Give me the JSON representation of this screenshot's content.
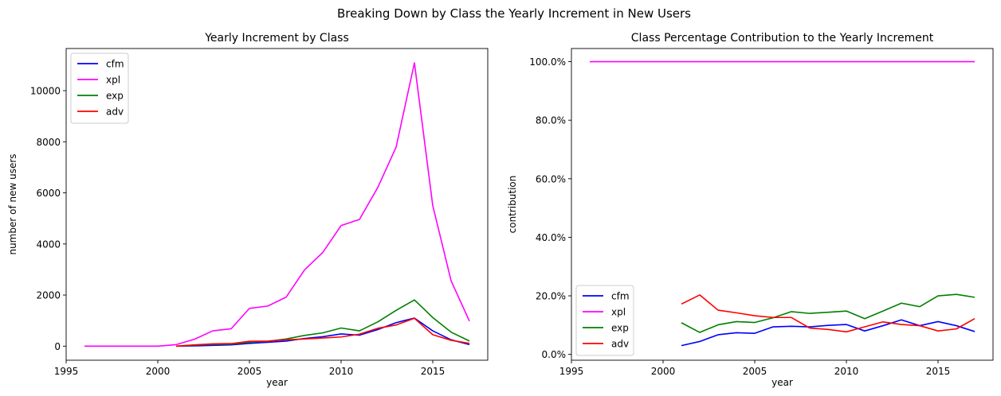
{
  "suptitle": "Breaking Down by Class the Yearly Increment in New Users",
  "chart_data": [
    {
      "type": "line",
      "title": "Yearly Increment by Class",
      "xlabel": "year",
      "ylabel": "number of new users",
      "xlim": [
        1995,
        2018
      ],
      "ylim": [
        -550,
        11650
      ],
      "xticks": [
        1995,
        2000,
        2005,
        2010,
        2015
      ],
      "yticks": [
        0,
        2000,
        4000,
        6000,
        8000,
        10000
      ],
      "ytick_format": "int",
      "legend": "upper left",
      "grid": false,
      "series": [
        {
          "name": "cfm",
          "color": "#0000ff",
          "x": [
            2001,
            2002,
            2003,
            2004,
            2005,
            2006,
            2007,
            2008,
            2009,
            2010,
            2011,
            2012,
            2013,
            2014,
            2015,
            2016,
            2017
          ],
          "y": [
            0,
            10,
            30,
            50,
            110,
            150,
            200,
            300,
            370,
            480,
            430,
            650,
            920,
            1100,
            600,
            250,
            60
          ]
        },
        {
          "name": "xpl",
          "color": "#ff00ff",
          "x": [
            1996,
            1997,
            1998,
            1999,
            2000,
            2001,
            2002,
            2003,
            2004,
            2005,
            2006,
            2007,
            2008,
            2009,
            2010,
            2011,
            2012,
            2013,
            2014,
            2015,
            2016,
            2017
          ],
          "y": [
            0,
            0,
            0,
            0,
            0,
            60,
            270,
            600,
            680,
            1480,
            1570,
            1920,
            2980,
            3670,
            4720,
            4960,
            6210,
            7790,
            11090,
            5500,
            2560,
            980
          ]
        },
        {
          "name": "exp",
          "color": "#008000",
          "x": [
            2001,
            2002,
            2003,
            2004,
            2005,
            2006,
            2007,
            2008,
            2009,
            2010,
            2011,
            2012,
            2013,
            2014,
            2015,
            2016,
            2017
          ],
          "y": [
            0,
            40,
            70,
            80,
            160,
            190,
            280,
            420,
            520,
            710,
            600,
            950,
            1400,
            1810,
            1120,
            550,
            200
          ]
        },
        {
          "name": "adv",
          "color": "#ff0000",
          "x": [
            2001,
            2002,
            2003,
            2004,
            2005,
            2006,
            2007,
            2008,
            2009,
            2010,
            2011,
            2012,
            2013,
            2014,
            2015,
            2016,
            2017
          ],
          "y": [
            0,
            50,
            90,
            100,
            190,
            200,
            250,
            280,
            320,
            360,
            470,
            700,
            830,
            1090,
            450,
            230,
            110
          ]
        }
      ]
    },
    {
      "type": "line",
      "title": "Class Percentage Contribution to the Yearly Increment",
      "xlabel": "year",
      "ylabel": "contribution",
      "xlim": [
        1995,
        2018
      ],
      "ylim": [
        -0.02,
        1.045
      ],
      "xticks": [
        1995,
        2000,
        2005,
        2010,
        2015
      ],
      "yticks": [
        0,
        0.2,
        0.4,
        0.6,
        0.8,
        1.0
      ],
      "ytick_format": "percent",
      "legend": "lower left",
      "grid": false,
      "series": [
        {
          "name": "cfm",
          "color": "#0000ff",
          "x": [
            2001,
            2002,
            2003,
            2004,
            2005,
            2006,
            2007,
            2008,
            2009,
            2010,
            2011,
            2012,
            2013,
            2014,
            2015,
            2016,
            2017
          ],
          "y": [
            0.03,
            0.044,
            0.067,
            0.074,
            0.072,
            0.094,
            0.096,
            0.094,
            0.099,
            0.102,
            0.08,
            0.098,
            0.118,
            0.098,
            0.112,
            0.098,
            0.078
          ]
        },
        {
          "name": "xpl",
          "color": "#ff00ff",
          "x": [
            1996,
            2017
          ],
          "y": [
            1.0,
            1.0
          ]
        },
        {
          "name": "exp",
          "color": "#008000",
          "x": [
            2001,
            2002,
            2003,
            2004,
            2005,
            2006,
            2007,
            2008,
            2009,
            2010,
            2011,
            2012,
            2013,
            2014,
            2015,
            2016,
            2017
          ],
          "y": [
            0.108,
            0.075,
            0.101,
            0.112,
            0.109,
            0.125,
            0.146,
            0.14,
            0.144,
            0.148,
            0.122,
            0.148,
            0.175,
            0.163,
            0.2,
            0.205,
            0.195
          ]
        },
        {
          "name": "adv",
          "color": "#ff0000",
          "x": [
            2001,
            2002,
            2003,
            2004,
            2005,
            2006,
            2007,
            2008,
            2009,
            2010,
            2011,
            2012,
            2013,
            2014,
            2015,
            2016,
            2017
          ],
          "y": [
            0.172,
            0.203,
            0.151,
            0.142,
            0.132,
            0.126,
            0.126,
            0.09,
            0.085,
            0.077,
            0.094,
            0.111,
            0.102,
            0.098,
            0.08,
            0.087,
            0.122
          ]
        }
      ]
    }
  ]
}
